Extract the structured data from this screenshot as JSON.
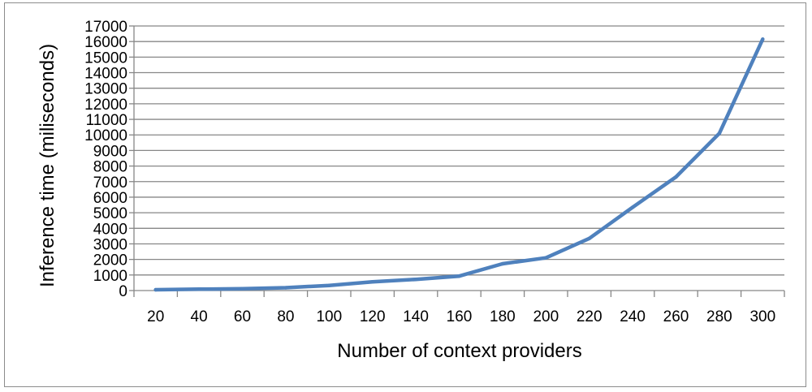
{
  "chart_data": {
    "type": "line",
    "title": "",
    "xlabel": "Number of context providers",
    "ylabel": "Inference time (miliseconds)",
    "categories": [
      "20",
      "40",
      "60",
      "80",
      "100",
      "120",
      "140",
      "160",
      "180",
      "200",
      "220",
      "240",
      "260",
      "280",
      "300"
    ],
    "series": [
      {
        "values": [
          50,
          90,
          120,
          180,
          330,
          560,
          720,
          930,
          1720,
          2100,
          3350,
          5350,
          7300,
          10100,
          16150
        ]
      }
    ],
    "ylim": [
      0,
      17000
    ],
    "yticks": [
      0,
      1000,
      2000,
      3000,
      4000,
      5000,
      6000,
      7000,
      8000,
      9000,
      10000,
      11000,
      12000,
      13000,
      14000,
      15000,
      16000,
      17000
    ],
    "grid": true,
    "legend": "none",
    "line_color": "#4f81bd",
    "grid_color": "#878787"
  }
}
